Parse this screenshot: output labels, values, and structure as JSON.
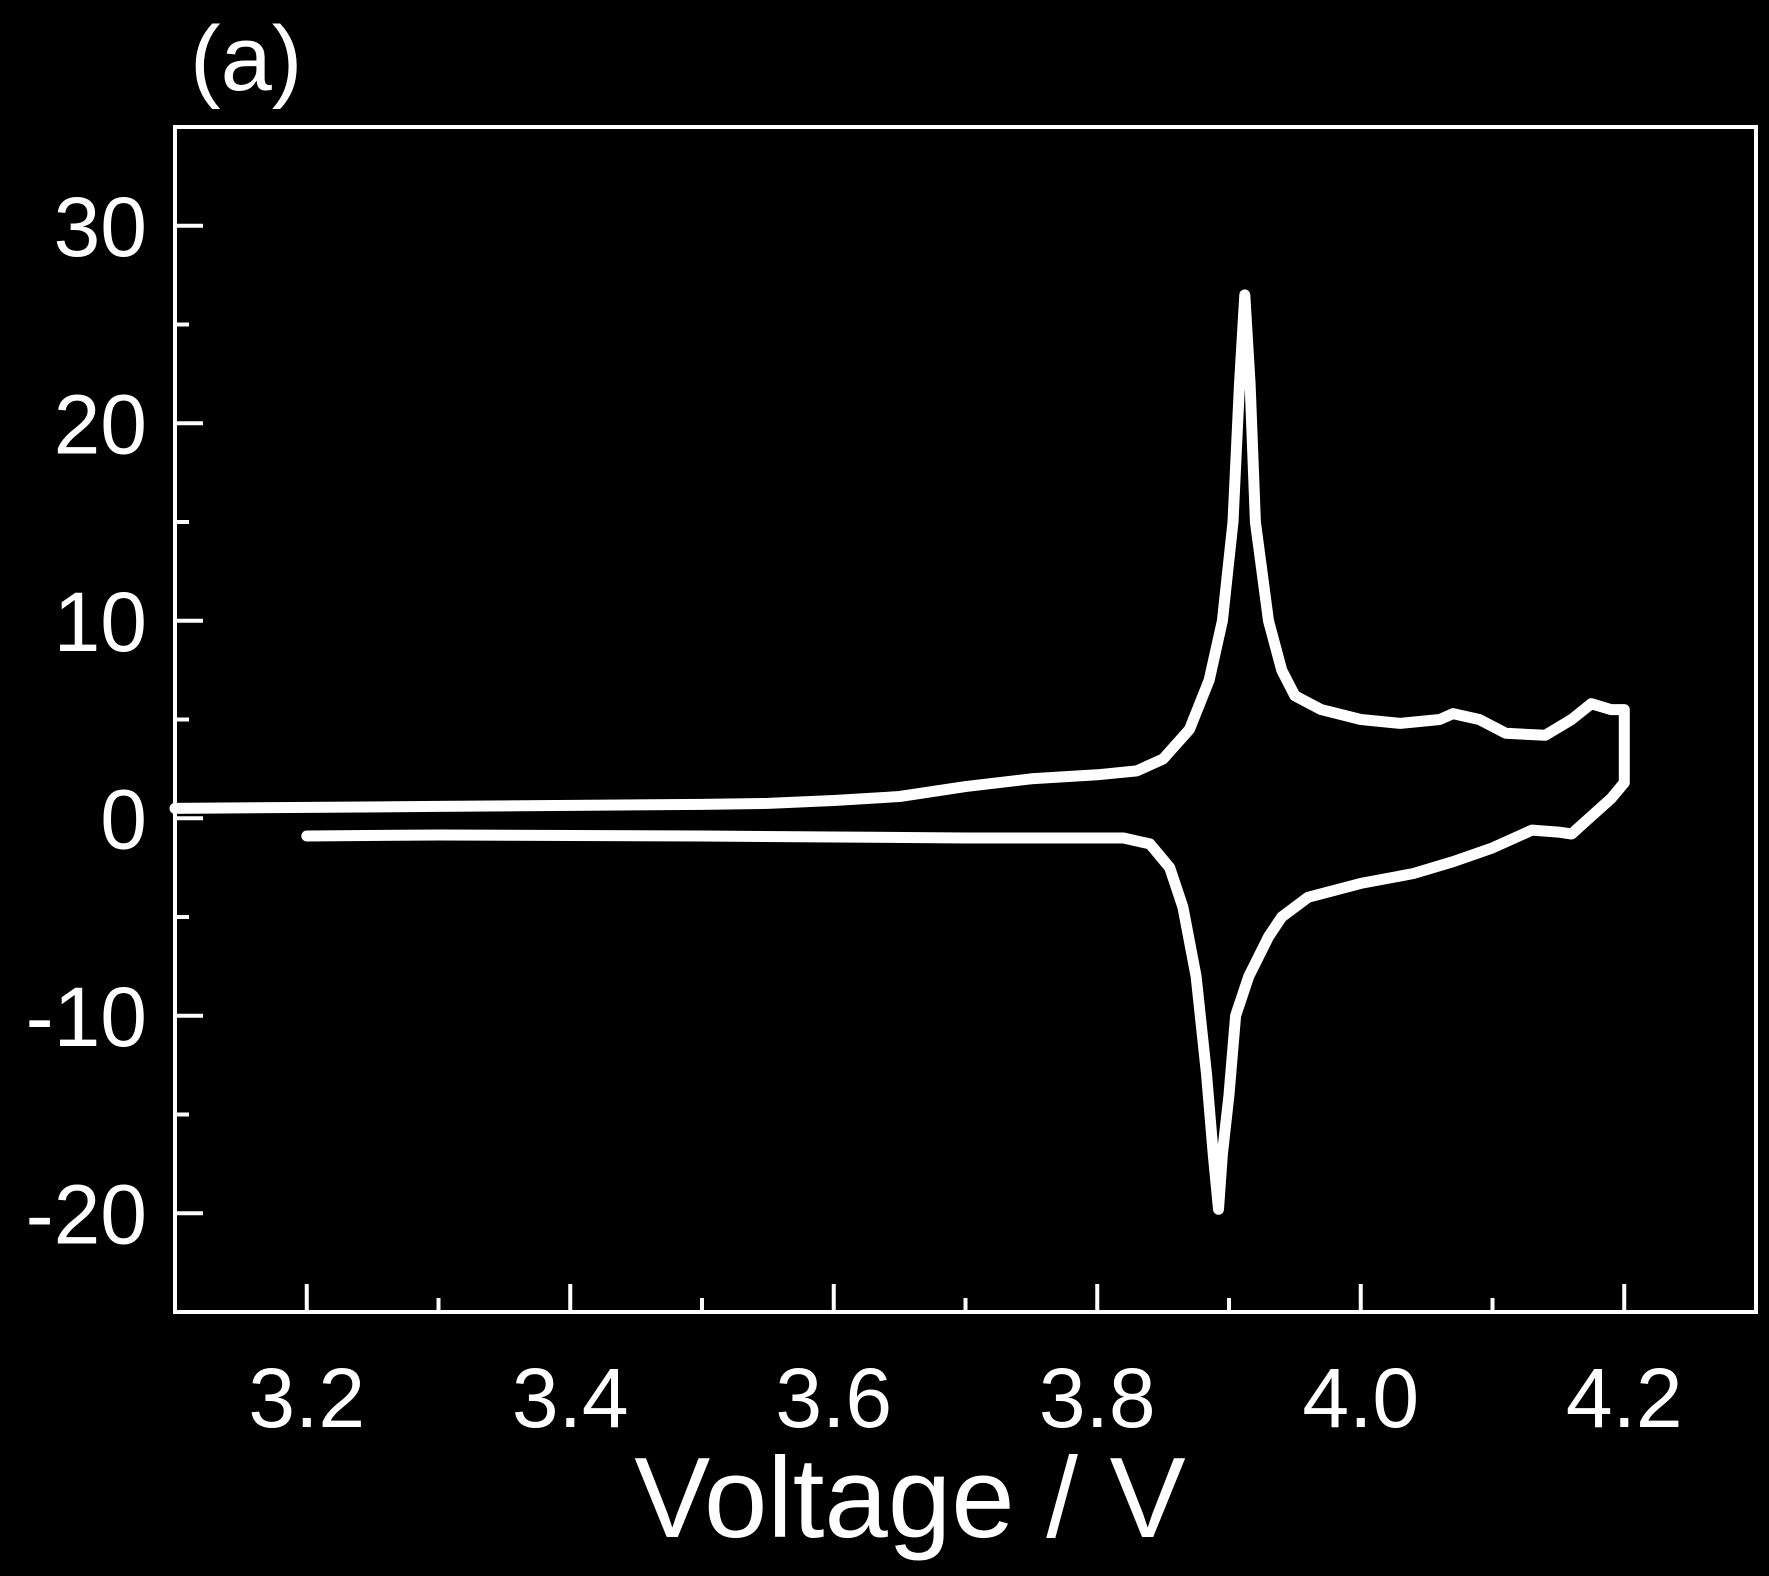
{
  "panel_label": "(a)",
  "colors": {
    "background": "#000000",
    "foreground": "#ffffff"
  },
  "chart_data": {
    "type": "line",
    "title": "",
    "xlabel": "Voltage / V",
    "ylabel": "",
    "xlim": [
      3.1,
      4.3
    ],
    "ylim": [
      -25,
      35
    ],
    "x_ticks": [
      3.2,
      3.4,
      3.6,
      3.8,
      4.0,
      4.2
    ],
    "x_tick_labels": [
      "3.2",
      "3.4",
      "3.6",
      "3.8",
      "4.0",
      "4.2"
    ],
    "x_minor_ticks": [
      3.3,
      3.5,
      3.7,
      3.9,
      4.1
    ],
    "y_ticks": [
      -20,
      -10,
      0,
      10,
      20,
      30
    ],
    "y_tick_labels": [
      "-20",
      "-10",
      "0",
      "10",
      "20",
      "30"
    ],
    "y_minor_ticks": [
      -15,
      -5,
      5,
      15,
      25
    ],
    "grid": false,
    "legend": "none",
    "series": [
      {
        "points": [
          [
            3.1,
            0.5
          ],
          [
            3.3,
            0.6
          ],
          [
            3.5,
            0.7
          ],
          [
            3.55,
            0.75
          ],
          [
            3.6,
            0.9
          ],
          [
            3.65,
            1.1
          ],
          [
            3.7,
            1.6
          ],
          [
            3.75,
            2.0
          ],
          [
            3.8,
            2.2
          ],
          [
            3.83,
            2.4
          ],
          [
            3.85,
            3.0
          ],
          [
            3.87,
            4.5
          ],
          [
            3.885,
            7.0
          ],
          [
            3.895,
            10.0
          ],
          [
            3.903,
            15.0
          ],
          [
            3.908,
            22.0
          ],
          [
            3.912,
            26.5
          ],
          [
            3.916,
            22.0
          ],
          [
            3.92,
            15.0
          ],
          [
            3.93,
            10.0
          ],
          [
            3.94,
            7.5
          ],
          [
            3.95,
            6.2
          ],
          [
            3.97,
            5.5
          ],
          [
            4.0,
            5.0
          ],
          [
            4.03,
            4.8
          ],
          [
            4.06,
            5.0
          ],
          [
            4.07,
            5.3
          ],
          [
            4.09,
            5.0
          ],
          [
            4.11,
            4.3
          ],
          [
            4.14,
            4.2
          ],
          [
            4.16,
            5.0
          ],
          [
            4.175,
            5.8
          ],
          [
            4.19,
            5.5
          ],
          [
            4.2,
            5.5
          ],
          [
            4.2,
            1.8
          ],
          [
            4.19,
            1.0
          ],
          [
            4.17,
            -0.2
          ],
          [
            4.16,
            -0.8
          ],
          [
            4.15,
            -0.7
          ],
          [
            4.13,
            -0.6
          ],
          [
            4.1,
            -1.5
          ],
          [
            4.07,
            -2.2
          ],
          [
            4.04,
            -2.8
          ],
          [
            4.0,
            -3.3
          ],
          [
            3.96,
            -4.0
          ],
          [
            3.94,
            -5.0
          ],
          [
            3.93,
            -6.0
          ],
          [
            3.915,
            -8.0
          ],
          [
            3.905,
            -10.0
          ],
          [
            3.9,
            -14.0
          ],
          [
            3.895,
            -17.0
          ],
          [
            3.892,
            -19.8
          ],
          [
            3.888,
            -17.0
          ],
          [
            3.883,
            -13.0
          ],
          [
            3.875,
            -8.0
          ],
          [
            3.865,
            -4.5
          ],
          [
            3.855,
            -2.5
          ],
          [
            3.84,
            -1.3
          ],
          [
            3.82,
            -1.0
          ],
          [
            3.7,
            -1.0
          ],
          [
            3.5,
            -0.9
          ],
          [
            3.3,
            -0.85
          ],
          [
            3.2,
            -0.9
          ]
        ]
      }
    ]
  }
}
